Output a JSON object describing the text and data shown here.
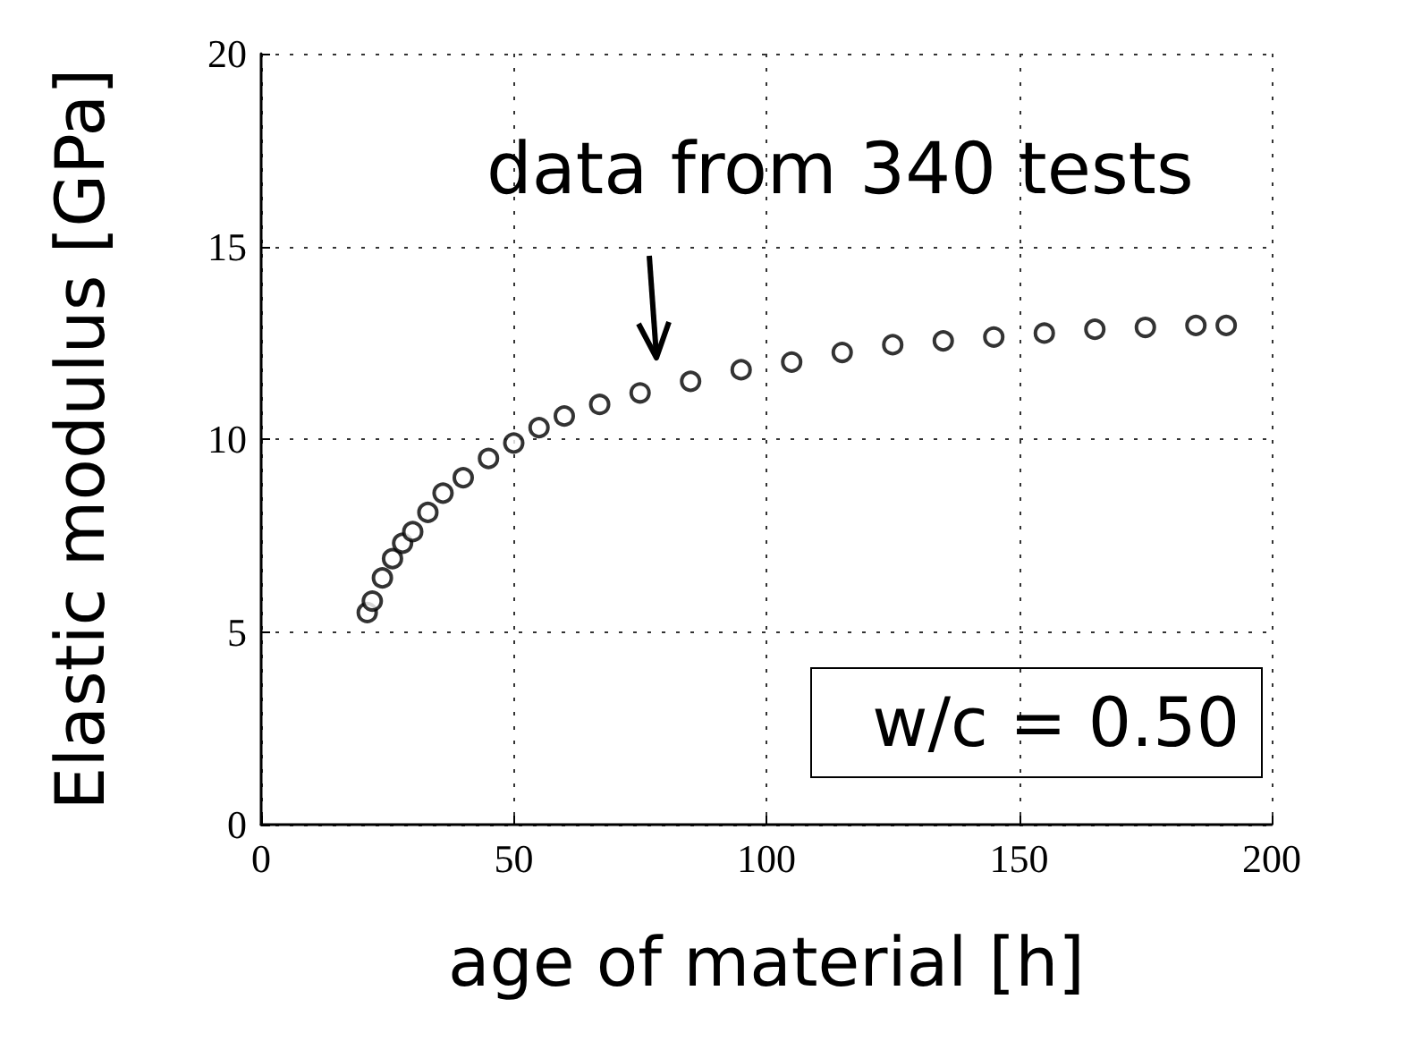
{
  "chart_data": {
    "type": "scatter",
    "xlabel": "age of material [h]",
    "ylabel": "Elastic modulus [GPa]",
    "x": [
      21,
      22,
      24,
      26,
      28,
      30,
      33,
      36,
      40,
      45,
      50,
      55,
      60,
      67,
      75,
      85,
      95,
      105,
      115,
      125,
      135,
      145,
      155,
      165,
      175,
      185,
      191
    ],
    "values": [
      5.5,
      5.8,
      6.4,
      6.9,
      7.3,
      7.6,
      8.1,
      8.6,
      9.0,
      9.5,
      9.9,
      10.3,
      10.6,
      10.9,
      11.2,
      11.5,
      11.8,
      12.0,
      12.25,
      12.45,
      12.55,
      12.65,
      12.75,
      12.85,
      12.9,
      12.95,
      12.95
    ],
    "color": "#000000",
    "marker": "circle",
    "xlim": [
      0,
      200
    ],
    "xticks": [
      0,
      50,
      100,
      150,
      200
    ],
    "ylim": [
      0,
      20
    ],
    "yticks": [
      0,
      5,
      10,
      15,
      20
    ],
    "grid": true,
    "annotations": [
      "data from 340 tests",
      "w/c = 0.50"
    ]
  }
}
